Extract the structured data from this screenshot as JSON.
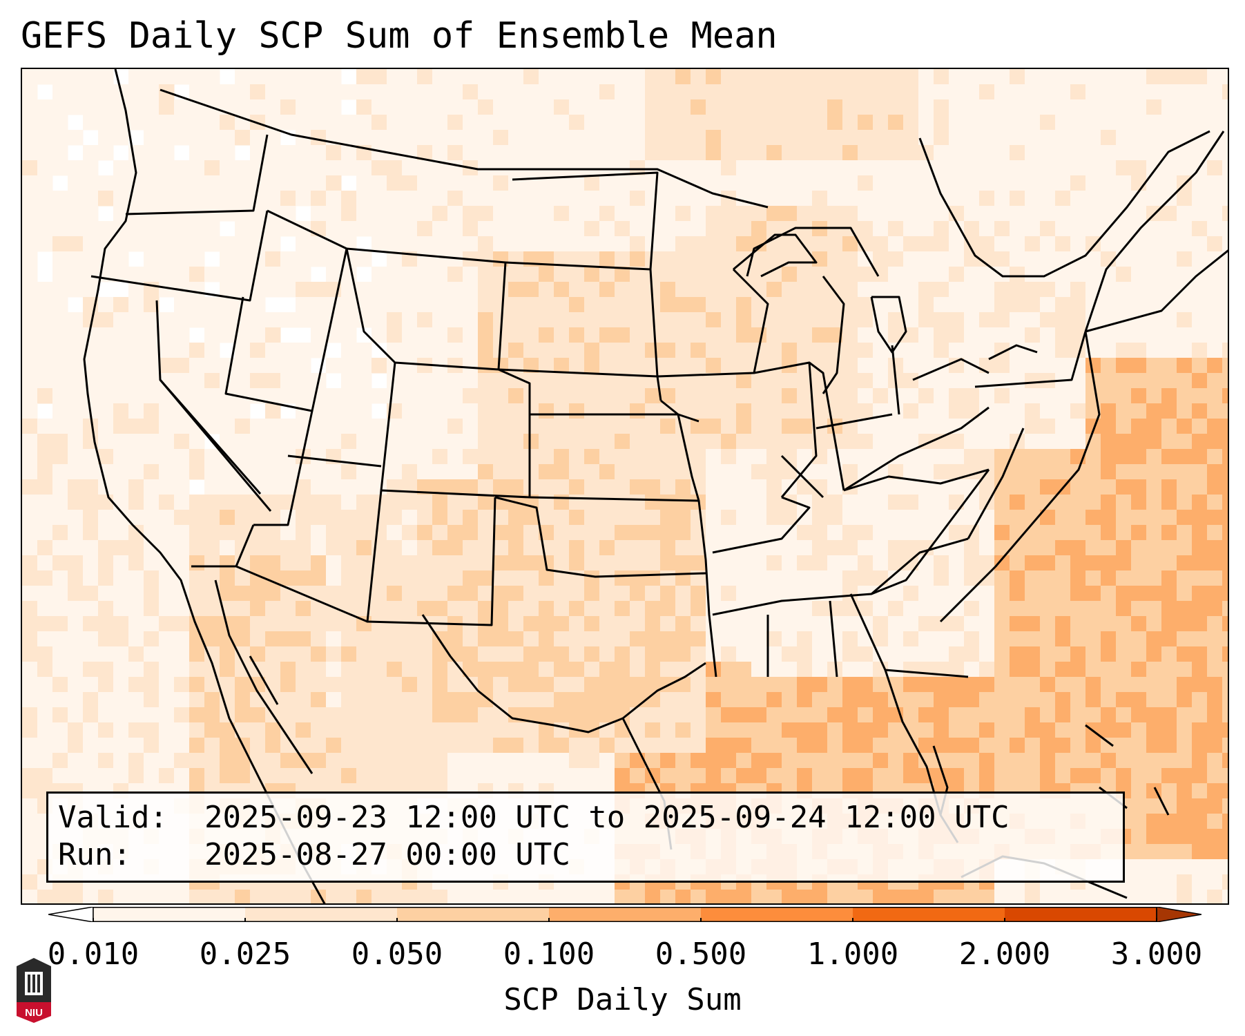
{
  "title": "GEFS Daily SCP Sum of Ensemble Mean",
  "info": {
    "valid_label": "Valid:",
    "valid_value": "2025-09-23 12:00 UTC to 2025-09-24 12:00 UTC",
    "run_label": "Run:",
    "run_value": "2025-08-27 00:00 UTC"
  },
  "colorbar": {
    "label": "SCP Daily Sum",
    "ticks": [
      "0.010",
      "0.025",
      "0.050",
      "0.100",
      "0.500",
      "1.000",
      "2.000",
      "3.000"
    ],
    "colors": [
      "#fff5eb",
      "#fee6ce",
      "#fdd0a2",
      "#fdae6b",
      "#fd8d3c",
      "#f16913",
      "#d94801",
      "#a63603"
    ],
    "extend": "both"
  },
  "logo": {
    "name": "niu-logo",
    "text": "NIU"
  }
}
